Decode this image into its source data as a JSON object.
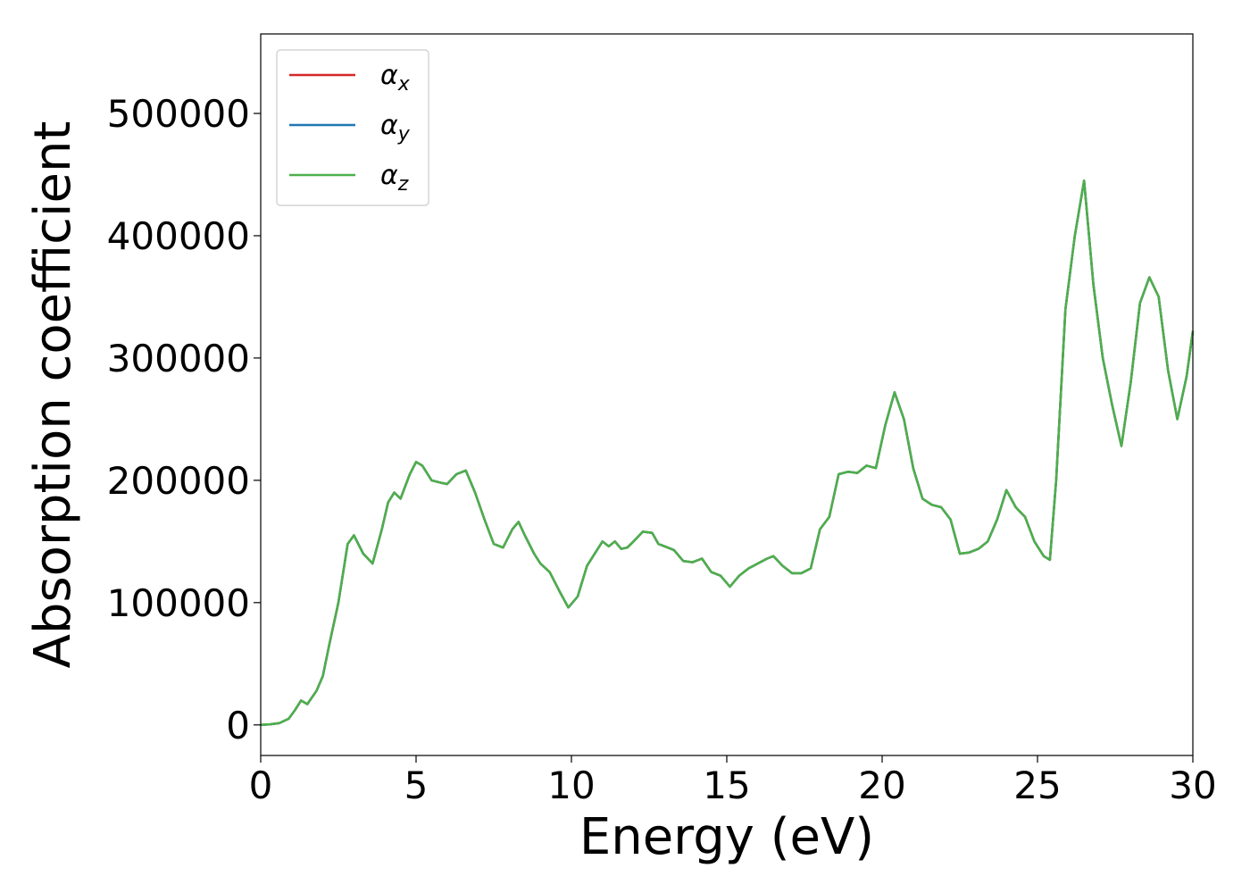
{
  "chart_data": {
    "type": "line",
    "title": "",
    "xlabel": "Energy (eV)",
    "ylabel": "Absorption coefficient",
    "xlim": [
      0,
      30
    ],
    "ylim": [
      -25000,
      565000
    ],
    "xticks": [
      0,
      5,
      10,
      15,
      20,
      25,
      30
    ],
    "yticks": [
      0,
      100000,
      200000,
      300000,
      400000,
      500000
    ],
    "grid": false,
    "legend_position": "top-left",
    "x": [
      0,
      0.3,
      0.6,
      0.9,
      1.1,
      1.3,
      1.5,
      1.8,
      2.0,
      2.2,
      2.5,
      2.8,
      3.0,
      3.3,
      3.6,
      3.9,
      4.1,
      4.3,
      4.5,
      4.8,
      5.0,
      5.2,
      5.5,
      5.8,
      6.0,
      6.3,
      6.6,
      6.9,
      7.2,
      7.5,
      7.8,
      8.1,
      8.3,
      8.5,
      8.8,
      9.0,
      9.3,
      9.6,
      9.9,
      10.2,
      10.5,
      10.8,
      11.0,
      11.2,
      11.4,
      11.6,
      11.8,
      12.0,
      12.3,
      12.6,
      12.8,
      13.0,
      13.3,
      13.6,
      13.9,
      14.2,
      14.5,
      14.8,
      15.1,
      15.4,
      15.7,
      16.0,
      16.3,
      16.5,
      16.8,
      17.1,
      17.4,
      17.7,
      18.0,
      18.3,
      18.6,
      18.9,
      19.2,
      19.5,
      19.8,
      20.1,
      20.4,
      20.7,
      21.0,
      21.3,
      21.6,
      21.9,
      22.2,
      22.5,
      22.8,
      23.1,
      23.4,
      23.7,
      24.0,
      24.3,
      24.6,
      24.9,
      25.2,
      25.4,
      25.6,
      25.9,
      26.2,
      26.5,
      26.8,
      27.1,
      27.4,
      27.7,
      28.0,
      28.3,
      28.6,
      28.9,
      29.2,
      29.5,
      29.8,
      30.0
    ],
    "series": [
      {
        "name": "αx",
        "color": "#d62728",
        "y": [
          0,
          500,
          1500,
          5000,
          12000,
          20000,
          17000,
          28000,
          40000,
          65000,
          100000,
          148000,
          155000,
          140000,
          132000,
          160000,
          182000,
          190000,
          185000,
          205000,
          215000,
          212000,
          200000,
          198000,
          197000,
          205000,
          208000,
          190000,
          168000,
          148000,
          145000,
          160000,
          166000,
          155000,
          140000,
          132000,
          125000,
          110000,
          96000,
          105000,
          130000,
          142000,
          150000,
          146000,
          150000,
          144000,
          145000,
          150000,
          158000,
          157000,
          148000,
          146000,
          143000,
          134000,
          133000,
          136000,
          125000,
          122000,
          113000,
          122000,
          128000,
          132000,
          136000,
          138000,
          130000,
          124000,
          124000,
          128000,
          160000,
          170000,
          205000,
          207000,
          206000,
          212000,
          210000,
          245000,
          272000,
          250000,
          210000,
          185000,
          180000,
          178000,
          168000,
          140000,
          141000,
          144000,
          150000,
          168000,
          192000,
          178000,
          170000,
          150000,
          138000,
          135000,
          200000,
          340000,
          400000,
          445000,
          360000,
          300000,
          262000,
          228000,
          280000,
          345000,
          366000,
          350000,
          290000,
          250000,
          285000,
          322000
        ]
      },
      {
        "name": "αy",
        "color": "#1f77b4",
        "y": [
          0,
          500,
          1500,
          5000,
          12000,
          20000,
          17000,
          28000,
          40000,
          65000,
          100000,
          148000,
          155000,
          140000,
          132000,
          160000,
          182000,
          190000,
          185000,
          205000,
          215000,
          212000,
          200000,
          198000,
          197000,
          205000,
          208000,
          190000,
          168000,
          148000,
          145000,
          160000,
          166000,
          155000,
          140000,
          132000,
          125000,
          110000,
          96000,
          105000,
          130000,
          142000,
          150000,
          146000,
          150000,
          144000,
          145000,
          150000,
          158000,
          157000,
          148000,
          146000,
          143000,
          134000,
          133000,
          136000,
          125000,
          122000,
          113000,
          122000,
          128000,
          132000,
          136000,
          138000,
          130000,
          124000,
          124000,
          128000,
          160000,
          170000,
          205000,
          207000,
          206000,
          212000,
          210000,
          245000,
          272000,
          250000,
          210000,
          185000,
          180000,
          178000,
          168000,
          140000,
          141000,
          144000,
          150000,
          168000,
          192000,
          178000,
          170000,
          150000,
          138000,
          135000,
          200000,
          340000,
          400000,
          445000,
          360000,
          300000,
          262000,
          228000,
          280000,
          345000,
          366000,
          350000,
          290000,
          250000,
          285000,
          322000
        ]
      },
      {
        "name": "αz",
        "color": "#4daf4a",
        "y": [
          0,
          500,
          1500,
          5000,
          12000,
          20000,
          17000,
          28000,
          40000,
          65000,
          100000,
          148000,
          155000,
          140000,
          132000,
          160000,
          182000,
          190000,
          185000,
          205000,
          215000,
          212000,
          200000,
          198000,
          197000,
          205000,
          208000,
          190000,
          168000,
          148000,
          145000,
          160000,
          166000,
          155000,
          140000,
          132000,
          125000,
          110000,
          96000,
          105000,
          130000,
          142000,
          150000,
          146000,
          150000,
          144000,
          145000,
          150000,
          158000,
          157000,
          148000,
          146000,
          143000,
          134000,
          133000,
          136000,
          125000,
          122000,
          113000,
          122000,
          128000,
          132000,
          136000,
          138000,
          130000,
          124000,
          124000,
          128000,
          160000,
          170000,
          205000,
          207000,
          206000,
          212000,
          210000,
          245000,
          272000,
          250000,
          210000,
          185000,
          180000,
          178000,
          168000,
          140000,
          141000,
          144000,
          150000,
          168000,
          192000,
          178000,
          170000,
          150000,
          138000,
          135000,
          200000,
          340000,
          400000,
          445000,
          360000,
          300000,
          262000,
          228000,
          280000,
          345000,
          366000,
          350000,
          290000,
          250000,
          285000,
          322000
        ]
      }
    ]
  }
}
